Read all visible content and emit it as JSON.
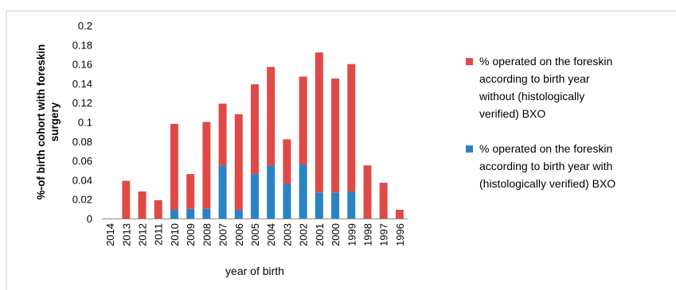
{
  "chart_data": {
    "type": "bar",
    "stacked": true,
    "title": "",
    "xlabel": "year of birth",
    "ylabel": "%-of birth cohort with foreskin surgery",
    "ylim": [
      0,
      0.2
    ],
    "ytick_step": 0.02,
    "yticks": [
      "0",
      "0.02",
      "0.04",
      "0.06",
      "0.08",
      "0.1",
      "0.12",
      "0.14",
      "0.16",
      "0.18",
      "0.2"
    ],
    "grid": false,
    "legend_position": "right",
    "categories": [
      "2014",
      "2013",
      "2012",
      "2011",
      "2010",
      "2009",
      "2008",
      "2007",
      "2006",
      "2005",
      "2004",
      "2003",
      "2002",
      "2001",
      "2000",
      "1999",
      "1998",
      "1997",
      "1996"
    ],
    "series": [
      {
        "name": "% operated on the foreskin according to birth year with (histologically verified) BXO",
        "legend_text": "% operated on the foreskin\naccording to birth year with\n(histologically verified) BXO",
        "color": "#2a83c5",
        "values": [
          0,
          0,
          0,
          0,
          0.009,
          0.01,
          0.01,
          0.055,
          0.009,
          0.046,
          0.055,
          0.036,
          0.056,
          0.027,
          0.027,
          0.028,
          0,
          0,
          0
        ]
      },
      {
        "name": "% operated on the foreskin according to birth year without (histologically verified) BXO",
        "legend_text": "% operated on the foreskin\naccording to birth year\nwithout (histologically\nverified) BXO",
        "color": "#e04a46",
        "values": [
          0,
          0.039,
          0.028,
          0.019,
          0.089,
          0.036,
          0.09,
          0.064,
          0.099,
          0.093,
          0.102,
          0.046,
          0.091,
          0.145,
          0.118,
          0.132,
          0.055,
          0.037,
          0.009
        ]
      }
    ]
  }
}
